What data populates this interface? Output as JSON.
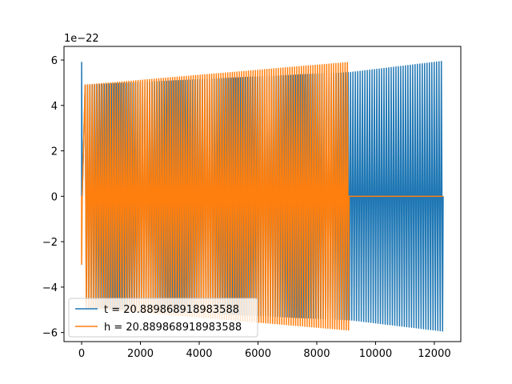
{
  "chart_data": {
    "type": "line",
    "title": "",
    "xlabel": "",
    "ylabel": "",
    "offset_text": "1e−22",
    "xlim": [
      -600,
      12900
    ],
    "ylim": [
      -6.4,
      6.6
    ],
    "y_scale_exponent": -22,
    "xticks": [
      0,
      2000,
      4000,
      6000,
      8000,
      10000,
      12000
    ],
    "xtick_labels": [
      "0",
      "2000",
      "4000",
      "6000",
      "8000",
      "10000",
      "12000"
    ],
    "yticks": [
      -6,
      -4,
      -2,
      0,
      2,
      4,
      6
    ],
    "ytick_labels": [
      "−6",
      "−4",
      "−2",
      "0",
      "2",
      "4",
      "6"
    ],
    "grid": false,
    "legend_position": "lower-left",
    "series": [
      {
        "name": "t = 20.889868918983588",
        "color": "#1f77b4",
        "x_range": [
          0,
          12300
        ],
        "initial_spike": {
          "x": 0,
          "y": 5.9
        },
        "envelope": [
          {
            "x": 100,
            "amplitude": 4.9
          },
          {
            "x": 9100,
            "amplitude": 5.45
          },
          {
            "x": 12300,
            "amplitude": 5.95
          }
        ],
        "approx_cycles": 150
      },
      {
        "name": "h = 20.889868918983588",
        "color": "#ff7f0e",
        "x_range": [
          0,
          12300
        ],
        "initial_spike": {
          "x": 0,
          "y": -3.0
        },
        "envelope": [
          {
            "x": 100,
            "amplitude": 4.9
          },
          {
            "x": 9100,
            "amplitude": 5.9
          }
        ],
        "flat_after_x": 9100,
        "flat_value": 0,
        "approx_cycles": 115
      }
    ]
  }
}
